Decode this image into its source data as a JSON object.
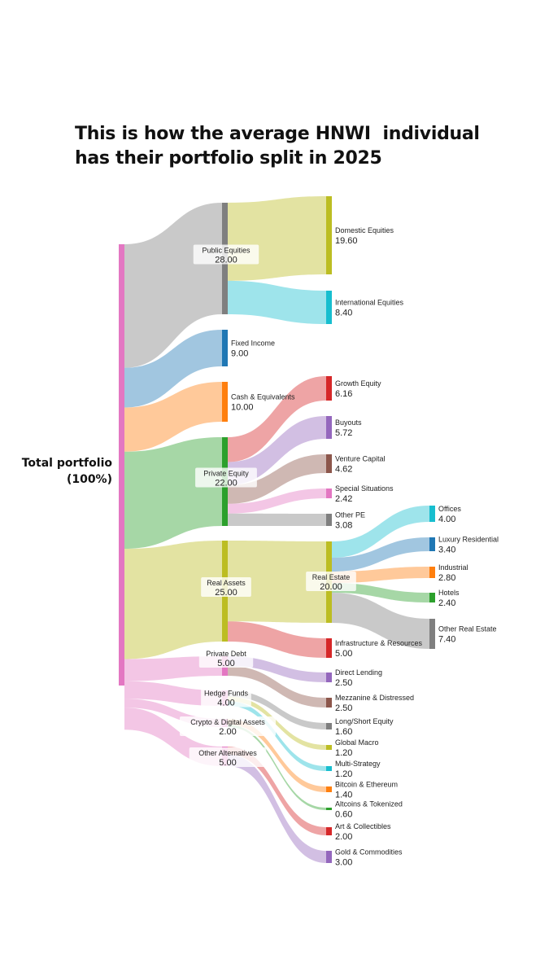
{
  "title_lines": [
    "This is how the average HNWI  individual",
    "has their portfolio split in 2025"
  ],
  "root_label": [
    "Total portfolio",
    "(100%)"
  ],
  "chart_data": {
    "type": "sankey",
    "title": "This is how the average HNWI  individual has their portfolio split in 2025",
    "root": "Total portfolio (100%)",
    "unit": "% of portfolio",
    "nodes": [
      {
        "id": "total",
        "label": "Total portfolio",
        "value": 100.0,
        "color": "#e377c2",
        "level": 0
      },
      {
        "id": "public_equities",
        "label": "Public Equities",
        "value": 28.0,
        "color": "#7f7f7f",
        "level": 1
      },
      {
        "id": "fixed_income",
        "label": "Fixed Income",
        "value": 9.0,
        "color": "#1f77b4",
        "level": 1
      },
      {
        "id": "cash",
        "label": "Cash & Equivalents",
        "value": 10.0,
        "color": "#ff7f0e",
        "level": 1
      },
      {
        "id": "private_equity",
        "label": "Private Equity",
        "value": 22.0,
        "color": "#2ca02c",
        "level": 1
      },
      {
        "id": "real_assets",
        "label": "Real Assets",
        "value": 25.0,
        "color": "#bcbd22",
        "level": 1
      },
      {
        "id": "private_debt",
        "label": "Private Debt",
        "value": 5.0,
        "color": "#e377c2",
        "level": 1
      },
      {
        "id": "hedge_funds",
        "label": "Hedge Funds",
        "value": 4.0,
        "color": "#e377c2",
        "level": 1
      },
      {
        "id": "crypto",
        "label": "Crypto & Digital Assets",
        "value": 2.0,
        "color": "#e377c2",
        "level": 1
      },
      {
        "id": "other_alts",
        "label": "Other Alternatives",
        "value": 5.0,
        "color": "#e377c2",
        "level": 1
      },
      {
        "id": "domestic_equities",
        "label": "Domestic Equities",
        "value": 19.6,
        "color": "#bcbd22",
        "level": 2
      },
      {
        "id": "international_equities",
        "label": "International Equities",
        "value": 8.4,
        "color": "#17becf",
        "level": 2
      },
      {
        "id": "growth_equity",
        "label": "Growth Equity",
        "value": 6.16,
        "color": "#d62728",
        "level": 2
      },
      {
        "id": "buyouts",
        "label": "Buyouts",
        "value": 5.72,
        "color": "#9467bd",
        "level": 2
      },
      {
        "id": "venture_capital",
        "label": "Venture Capital",
        "value": 4.62,
        "color": "#8c564b",
        "level": 2
      },
      {
        "id": "special_situations",
        "label": "Special Situations",
        "value": 2.42,
        "color": "#e377c2",
        "level": 2
      },
      {
        "id": "other_pe",
        "label": "Other PE",
        "value": 3.08,
        "color": "#7f7f7f",
        "level": 2
      },
      {
        "id": "real_estate",
        "label": "Real Estate",
        "value": 20.0,
        "color": "#bcbd22",
        "level": 2
      },
      {
        "id": "infrastructure",
        "label": "Infrastructure & Resources",
        "value": 5.0,
        "color": "#d62728",
        "level": 2
      },
      {
        "id": "direct_lending",
        "label": "Direct Lending",
        "value": 2.5,
        "color": "#9467bd",
        "level": 2
      },
      {
        "id": "mezzanine",
        "label": "Mezzanine & Distressed",
        "value": 2.5,
        "color": "#8c564b",
        "level": 2
      },
      {
        "id": "long_short",
        "label": "Long/Short Equity",
        "value": 1.6,
        "color": "#7f7f7f",
        "level": 2
      },
      {
        "id": "global_macro",
        "label": "Global Macro",
        "value": 1.2,
        "color": "#bcbd22",
        "level": 2
      },
      {
        "id": "multi_strategy",
        "label": "Multi-Strategy",
        "value": 1.2,
        "color": "#17becf",
        "level": 2
      },
      {
        "id": "bitcoin_eth",
        "label": "Bitcoin & Ethereum",
        "value": 1.4,
        "color": "#ff7f0e",
        "level": 2
      },
      {
        "id": "altcoins",
        "label": "Altcoins & Tokenized",
        "value": 0.6,
        "color": "#2ca02c",
        "level": 2
      },
      {
        "id": "art",
        "label": "Art & Collectibles",
        "value": 2.0,
        "color": "#d62728",
        "level": 2
      },
      {
        "id": "gold",
        "label": "Gold & Commodities",
        "value": 3.0,
        "color": "#9467bd",
        "level": 2
      },
      {
        "id": "offices",
        "label": "Offices",
        "value": 4.0,
        "color": "#17becf",
        "level": 3
      },
      {
        "id": "luxury_residential",
        "label": "Luxury Residential",
        "value": 3.4,
        "color": "#1f77b4",
        "level": 3
      },
      {
        "id": "industrial",
        "label": "Industrial",
        "value": 2.8,
        "color": "#ff7f0e",
        "level": 3
      },
      {
        "id": "hotels",
        "label": "Hotels",
        "value": 2.4,
        "color": "#2ca02c",
        "level": 3
      },
      {
        "id": "other_real_estate",
        "label": "Other Real Estate",
        "value": 7.4,
        "color": "#7f7f7f",
        "level": 3
      }
    ],
    "links": [
      {
        "source": "total",
        "target": "public_equities",
        "value": 28.0
      },
      {
        "source": "total",
        "target": "fixed_income",
        "value": 9.0
      },
      {
        "source": "total",
        "target": "cash",
        "value": 10.0
      },
      {
        "source": "total",
        "target": "private_equity",
        "value": 22.0
      },
      {
        "source": "total",
        "target": "real_assets",
        "value": 25.0
      },
      {
        "source": "total",
        "target": "private_debt",
        "value": 5.0
      },
      {
        "source": "total",
        "target": "hedge_funds",
        "value": 4.0
      },
      {
        "source": "total",
        "target": "crypto",
        "value": 2.0
      },
      {
        "source": "total",
        "target": "other_alts",
        "value": 5.0
      },
      {
        "source": "public_equities",
        "target": "domestic_equities",
        "value": 19.6
      },
      {
        "source": "public_equities",
        "target": "international_equities",
        "value": 8.4
      },
      {
        "source": "private_equity",
        "target": "growth_equity",
        "value": 6.16
      },
      {
        "source": "private_equity",
        "target": "buyouts",
        "value": 5.72
      },
      {
        "source": "private_equity",
        "target": "venture_capital",
        "value": 4.62
      },
      {
        "source": "private_equity",
        "target": "special_situations",
        "value": 2.42
      },
      {
        "source": "private_equity",
        "target": "other_pe",
        "value": 3.08
      },
      {
        "source": "real_assets",
        "target": "real_estate",
        "value": 20.0
      },
      {
        "source": "real_assets",
        "target": "infrastructure",
        "value": 5.0
      },
      {
        "source": "private_debt",
        "target": "direct_lending",
        "value": 2.5
      },
      {
        "source": "private_debt",
        "target": "mezzanine",
        "value": 2.5
      },
      {
        "source": "hedge_funds",
        "target": "long_short",
        "value": 1.6
      },
      {
        "source": "hedge_funds",
        "target": "global_macro",
        "value": 1.2
      },
      {
        "source": "hedge_funds",
        "target": "multi_strategy",
        "value": 1.2
      },
      {
        "source": "crypto",
        "target": "bitcoin_eth",
        "value": 1.4
      },
      {
        "source": "crypto",
        "target": "altcoins",
        "value": 0.6
      },
      {
        "source": "other_alts",
        "target": "art",
        "value": 2.0
      },
      {
        "source": "other_alts",
        "target": "gold",
        "value": 3.0
      },
      {
        "source": "real_estate",
        "target": "offices",
        "value": 4.0
      },
      {
        "source": "real_estate",
        "target": "luxury_residential",
        "value": 3.4
      },
      {
        "source": "real_estate",
        "target": "industrial",
        "value": 2.8
      },
      {
        "source": "real_estate",
        "target": "hotels",
        "value": 2.4
      },
      {
        "source": "real_estate",
        "target": "other_real_estate",
        "value": 7.4
      }
    ]
  }
}
